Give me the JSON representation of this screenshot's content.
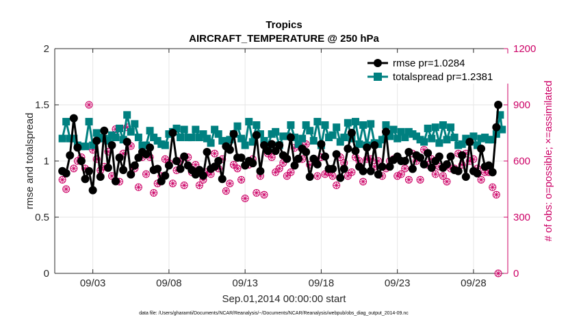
{
  "chart_data": {
    "type": "line",
    "title": "Tropics",
    "subtitle": "AIRCRAFT_TEMPERATURE @ 250 hPa",
    "xlabel": "Sep.01,2014 00:00:00 start",
    "ylabel": "rmse and totalspread",
    "ylabel_right": "# of obs: o=possible; ×=assimilated",
    "ylim": [
      0,
      2
    ],
    "ylim_right": [
      0,
      1200
    ],
    "xlim": [
      0.5,
      30.25
    ],
    "yticks": [
      "0",
      "0.5",
      "1",
      "1.5",
      "2"
    ],
    "yticks_right": [
      "0",
      "300",
      "600",
      "900",
      "1200"
    ],
    "yticks_right_values": [
      0,
      300,
      600,
      900,
      1200
    ],
    "xticks": [
      "09/03",
      "09/08",
      "09/13",
      "09/18",
      "09/23",
      "09/28"
    ],
    "xtick_days": [
      3,
      8,
      13,
      18,
      23,
      28
    ],
    "footnote": "data file: /Users/gharamti/Documents/NCAR/Reanalysis/~/Documents/NCAR/Reanalysis/webpub/obs_diag_output_2014-09.nc",
    "legend_position": "top-right",
    "colors": {
      "rmse": "#000000",
      "totalspread": "#008080",
      "obs": "#cc0066",
      "grid": "#e6e6e6"
    },
    "series": [
      {
        "name": "rmse  pr=1.0284",
        "marker": "circle",
        "values": [
          0.91,
          0.9,
          0.89,
          1.06,
          1.05,
          1.07,
          1.38,
          1.02,
          1.12,
          0.99,
          1.0,
          0.88,
          0.84,
          0.93,
          0.91,
          1.11,
          0.74,
          1.04,
          1.18,
          0.98,
          0.86,
          0.95,
          1.27,
          0.85,
          0.94,
          1.18,
          1.14,
          0.97,
          0.82,
          1.24,
          1.03,
          1.11,
          0.92,
          1.1,
          1.17,
          1.29,
          0.88,
          1.15,
          0.96,
          0.94,
          1.03,
          0.97,
          1.08,
          0.92,
          1.06,
          0.98,
          1.12,
          0.96,
          0.92,
          1.13,
          0.93,
          0.98,
          0.82,
          1.06,
          0.87,
          1.17,
          0.96,
          0.91,
          1.25,
          0.93,
          1.0,
          0.94,
          0.93,
          1.05,
          1.04,
          0.99,
          0.96,
          1.08,
          0.92,
          1.07,
          0.88,
          1.01,
          0.92,
          1.16,
          0.87,
          0.9,
          1.08,
          1.12,
          0.93,
          0.86,
          0.95,
          1.05,
          1.0,
          0.93,
          0.84,
          0.9,
          1.13,
          0.89,
          1.1,
          0.99,
          1.24,
          1.09,
          1.03,
          0.84,
          1.03,
          1.05,
          0.96,
          1.13,
          1.0,
          1.07,
          0.98,
          1.0,
          1.23,
          0.95,
          0.91,
          0.91,
          1.14,
          0.84,
          1.09,
          1.08,
          1.15,
          0.94,
          1.09,
          1.03,
          1.14,
          0.97,
          1.05,
          0.98,
          1.02,
          0.95,
          1.21,
          1.1,
          0.96,
          1.07,
          1.02,
          1.03,
          1.11,
          0.93,
          1.08,
          0.97,
          0.86,
          0.97,
          1.02,
          0.93,
          0.97,
          1.04,
          1.15,
          0.88,
          1.04,
          1.02,
          0.93,
          0.98,
          0.93,
          0.96,
          1.06,
          1.17,
          0.85,
          0.86,
          0.93,
          0.91,
          1.11,
          1.0,
          1.25,
          1.08,
          1.09,
          0.9,
          0.95,
          1.07,
          0.91,
          1.01,
          1.12,
          1.07,
          0.91,
          1.05,
          1.14,
          1.12,
          0.88,
          0.92,
          0.95,
          1.04,
          1.26,
          0.85,
          0.95,
          1.08,
          1.01,
          0.92,
          1.04,
          1.16,
          1.0,
          1.01,
          1.0,
          1.02,
          1.08,
          1.09,
          0.93,
          1.04,
          1.05,
          1.2,
          1.03,
          1.03,
          0.97,
          0.96,
          1.07,
          0.91,
          0.94,
          1.03,
          1.0,
          0.87,
          1.04,
          1.03,
          0.94,
          0.95,
          0.97,
          1.02,
          1.04,
          0.99,
          0.92,
          1.19,
          0.91,
          1.12,
          1.05,
          1.0,
          0.86,
          1.1,
          1.17,
          0.92,
          0.91,
          1.19,
          0.89,
          1.15,
          1.11,
          0.85,
          0.95,
          0.94,
          0.96,
          1.07,
          0.9,
          1.0,
          1.3,
          1.5
        ]
      },
      {
        "name": "totalspread  pr=1.2381",
        "marker": "square",
        "values": [
          1.2,
          1.2,
          1.35,
          1.36,
          1.2,
          1.2,
          1.2,
          1.38,
          1.14,
          1.12,
          1.13,
          1.2,
          1.13,
          1.12,
          1.35,
          1.12,
          1.14,
          1.11,
          1.25,
          1.23,
          1.21,
          1.3,
          1.2,
          1.28,
          1.18,
          1.32,
          1.23,
          1.27,
          1.21,
          1.22,
          1.29,
          1.26,
          1.19,
          1.34,
          1.41,
          1.2,
          1.26,
          1.17,
          1.33,
          1.24,
          1.21,
          1.2,
          1.14,
          1.21,
          1.14,
          1.19,
          1.27,
          1.14,
          1.21,
          1.28,
          1.18,
          1.21,
          1.15,
          1.34,
          1.14,
          1.17,
          1.24,
          1.16,
          1.26,
          1.18,
          1.29,
          1.26,
          1.21,
          1.2,
          1.28,
          1.34,
          1.21,
          1.16,
          1.21,
          1.18,
          1.28,
          1.21,
          1.21,
          1.34,
          1.24,
          1.17,
          1.2,
          1.26,
          1.16,
          1.22,
          1.28,
          1.21,
          1.24,
          1.22,
          1.18,
          1.29,
          1.18,
          1.23,
          1.19,
          1.16,
          1.24,
          1.21,
          1.31,
          1.22,
          1.2,
          1.27,
          1.14,
          1.21,
          1.35,
          1.14,
          1.17,
          1.3,
          1.32,
          1.18,
          1.24,
          1.21,
          1.18,
          1.28,
          1.14,
          1.15,
          1.24,
          1.16,
          1.26,
          1.32,
          1.14,
          1.15,
          1.22,
          1.21,
          1.22,
          1.25,
          1.32,
          1.19,
          1.21,
          1.28,
          1.15,
          1.21,
          1.2,
          1.3,
          1.32,
          1.2,
          1.27,
          1.21,
          1.18,
          1.16,
          1.35,
          1.26,
          1.14,
          1.24,
          1.32,
          1.14,
          1.21,
          1.21,
          1.23,
          1.14,
          1.3,
          1.19,
          1.17,
          1.28,
          1.21,
          1.17,
          1.34,
          1.2,
          1.2,
          1.18,
          1.35,
          1.21,
          1.15,
          1.2,
          1.32,
          1.22,
          1.14,
          1.16,
          1.33,
          1.19,
          1.16,
          1.23,
          1.15,
          1.23,
          1.19,
          1.3,
          1.32,
          1.13,
          1.22,
          1.18,
          1.28,
          1.21,
          1.2,
          1.15,
          1.26,
          1.28,
          1.21,
          1.18,
          1.26,
          1.33,
          1.24,
          1.25,
          1.22,
          1.12,
          1.19,
          1.3,
          1.17,
          1.22,
          1.29,
          1.17,
          1.2,
          1.3,
          1.3,
          1.2,
          1.16,
          1.22,
          1.32,
          1.2,
          1.19,
          1.15,
          1.3,
          1.27,
          1.21,
          1.19,
          1.14,
          1.26,
          1.15,
          1.33,
          1.2,
          1.28,
          1.17,
          1.26,
          1.22,
          1.18,
          1.14,
          1.3,
          1.2,
          1.32,
          1.21,
          1.21,
          1.19,
          1.29,
          1.19,
          1.15,
          1.24,
          1.24,
          1.41,
          1.28
        ]
      }
    ],
    "obs_count": {
      "name": "# of obs",
      "axis": "right",
      "marker": "circle-x",
      "values": [
        500,
        450,
        450,
        520,
        720,
        600,
        560,
        490,
        600,
        680,
        620,
        520,
        560,
        550,
        900,
        650,
        660,
        600,
        610,
        700,
        550,
        500,
        570,
        580,
        650,
        500,
        520,
        610,
        770,
        640,
        490,
        460,
        640,
        620,
        780,
        640,
        680,
        620,
        560,
        560,
        460,
        580,
        620,
        630,
        530,
        480,
        620,
        450,
        430,
        540,
        480,
        480,
        520,
        620,
        610,
        600,
        590,
        630,
        480,
        440,
        550,
        450,
        600,
        490,
        470,
        610,
        620,
        770,
        540,
        600,
        580,
        560,
        470,
        470,
        500,
        640,
        540,
        560,
        530,
        560,
        640,
        600,
        560,
        580,
        610,
        590,
        440,
        500,
        480,
        610,
        580,
        480,
        560,
        660,
        500,
        620,
        400,
        460,
        580,
        540,
        610,
        500,
        430,
        530,
        520,
        560,
        420,
        550,
        640,
        610,
        620,
        500,
        540,
        530,
        560,
        560,
        590,
        660,
        520,
        560,
        540,
        620,
        670,
        620,
        610,
        660,
        610,
        700,
        690,
        650,
        580,
        630,
        610,
        600,
        520,
        540,
        620,
        560,
        530,
        590,
        540,
        530,
        520,
        650,
        470,
        540,
        620,
        540,
        590,
        560,
        520,
        500,
        540,
        590,
        620,
        560,
        600,
        620,
        490,
        550,
        610,
        640,
        610,
        570,
        570,
        580,
        600,
        650,
        520,
        480,
        560,
        630,
        600,
        610,
        610,
        540,
        520,
        570,
        530,
        580,
        560,
        610,
        500,
        470,
        640,
        550,
        600,
        540,
        500,
        620,
        660,
        660,
        580,
        540,
        610,
        480,
        530,
        560,
        570,
        610,
        520,
        600,
        490,
        520,
        560,
        610,
        560,
        620,
        640,
        600,
        580,
        620,
        640,
        470,
        600,
        560,
        610,
        640,
        560,
        600,
        500,
        470,
        540,
        590,
        540,
        530,
        460,
        450,
        420,
        0
      ]
    }
  }
}
